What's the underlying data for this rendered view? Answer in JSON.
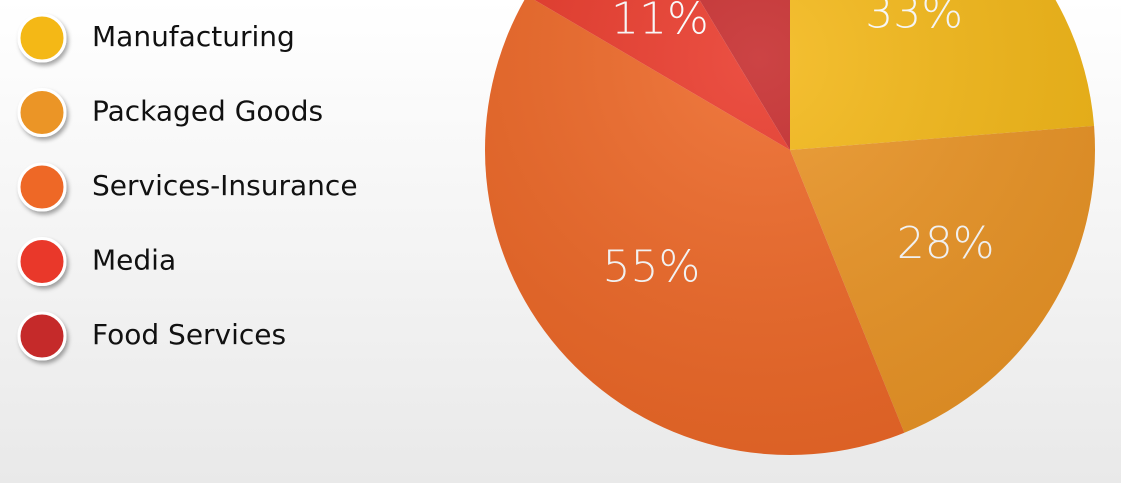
{
  "chart_data": {
    "type": "pie",
    "categories": [
      "Manufacturing",
      "Packaged Goods",
      "Services-Insurance",
      "Media",
      "Food Services"
    ],
    "values": [
      33,
      28,
      55,
      11,
      12
    ],
    "value_labels": [
      "33%",
      "28%",
      "55%",
      "11%",
      null
    ],
    "colors": [
      "#f4b817",
      "#eb9526",
      "#ee6827",
      "#e9392a",
      "#c52a2b"
    ]
  }
}
